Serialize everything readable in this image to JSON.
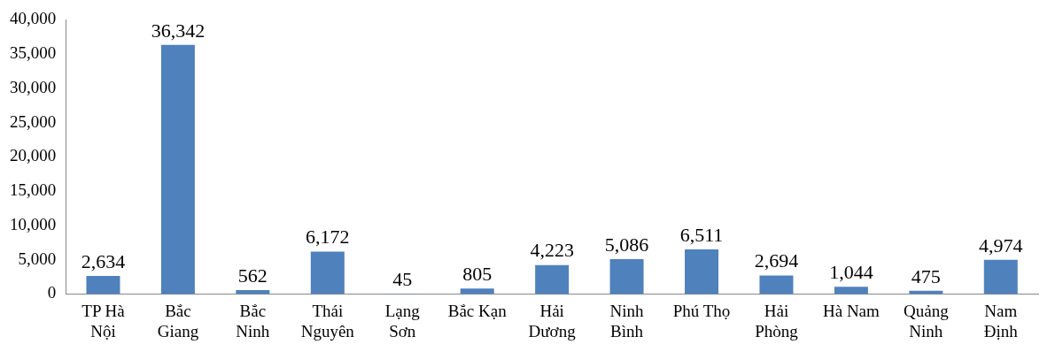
{
  "chart_data": {
    "type": "bar",
    "categories": [
      "TP Hà Nội",
      "Bắc Giang",
      "Bắc Ninh",
      "Thái Nguyên",
      "Lạng Sơn",
      "Bắc Kạn",
      "Hải Dương",
      "Ninh Bình",
      "Phú Thọ",
      "Hải Phòng",
      "Hà Nam",
      "Quảng Ninh",
      "Nam Định"
    ],
    "values": [
      2634,
      36342,
      562,
      6172,
      45,
      805,
      4223,
      5086,
      6511,
      2694,
      1044,
      475,
      4974
    ],
    "value_labels": [
      "2,634",
      "36,342",
      "562",
      "6,172",
      "45",
      "805",
      "4,223",
      "5,086",
      "6,511",
      "2,694",
      "1,044",
      "475",
      "4,974"
    ],
    "color": "#4f81bd",
    "ylim": [
      0,
      40000
    ],
    "yticks": [
      0,
      {
        "value": 5000,
        "label": "5,000"
      },
      {
        "value": 10000,
        "label": "10,000"
      },
      {
        "value": 15000,
        "label": "15,000"
      },
      {
        "value": 20000,
        "label": "20,000"
      },
      {
        "value": 25000,
        "label": "25,000"
      },
      {
        "value": 30000,
        "label": "30,000"
      },
      {
        "value": 35000,
        "label": "35,000"
      },
      {
        "value": 40000,
        "label": "40,000"
      }
    ],
    "grid": false,
    "legend": false
  }
}
